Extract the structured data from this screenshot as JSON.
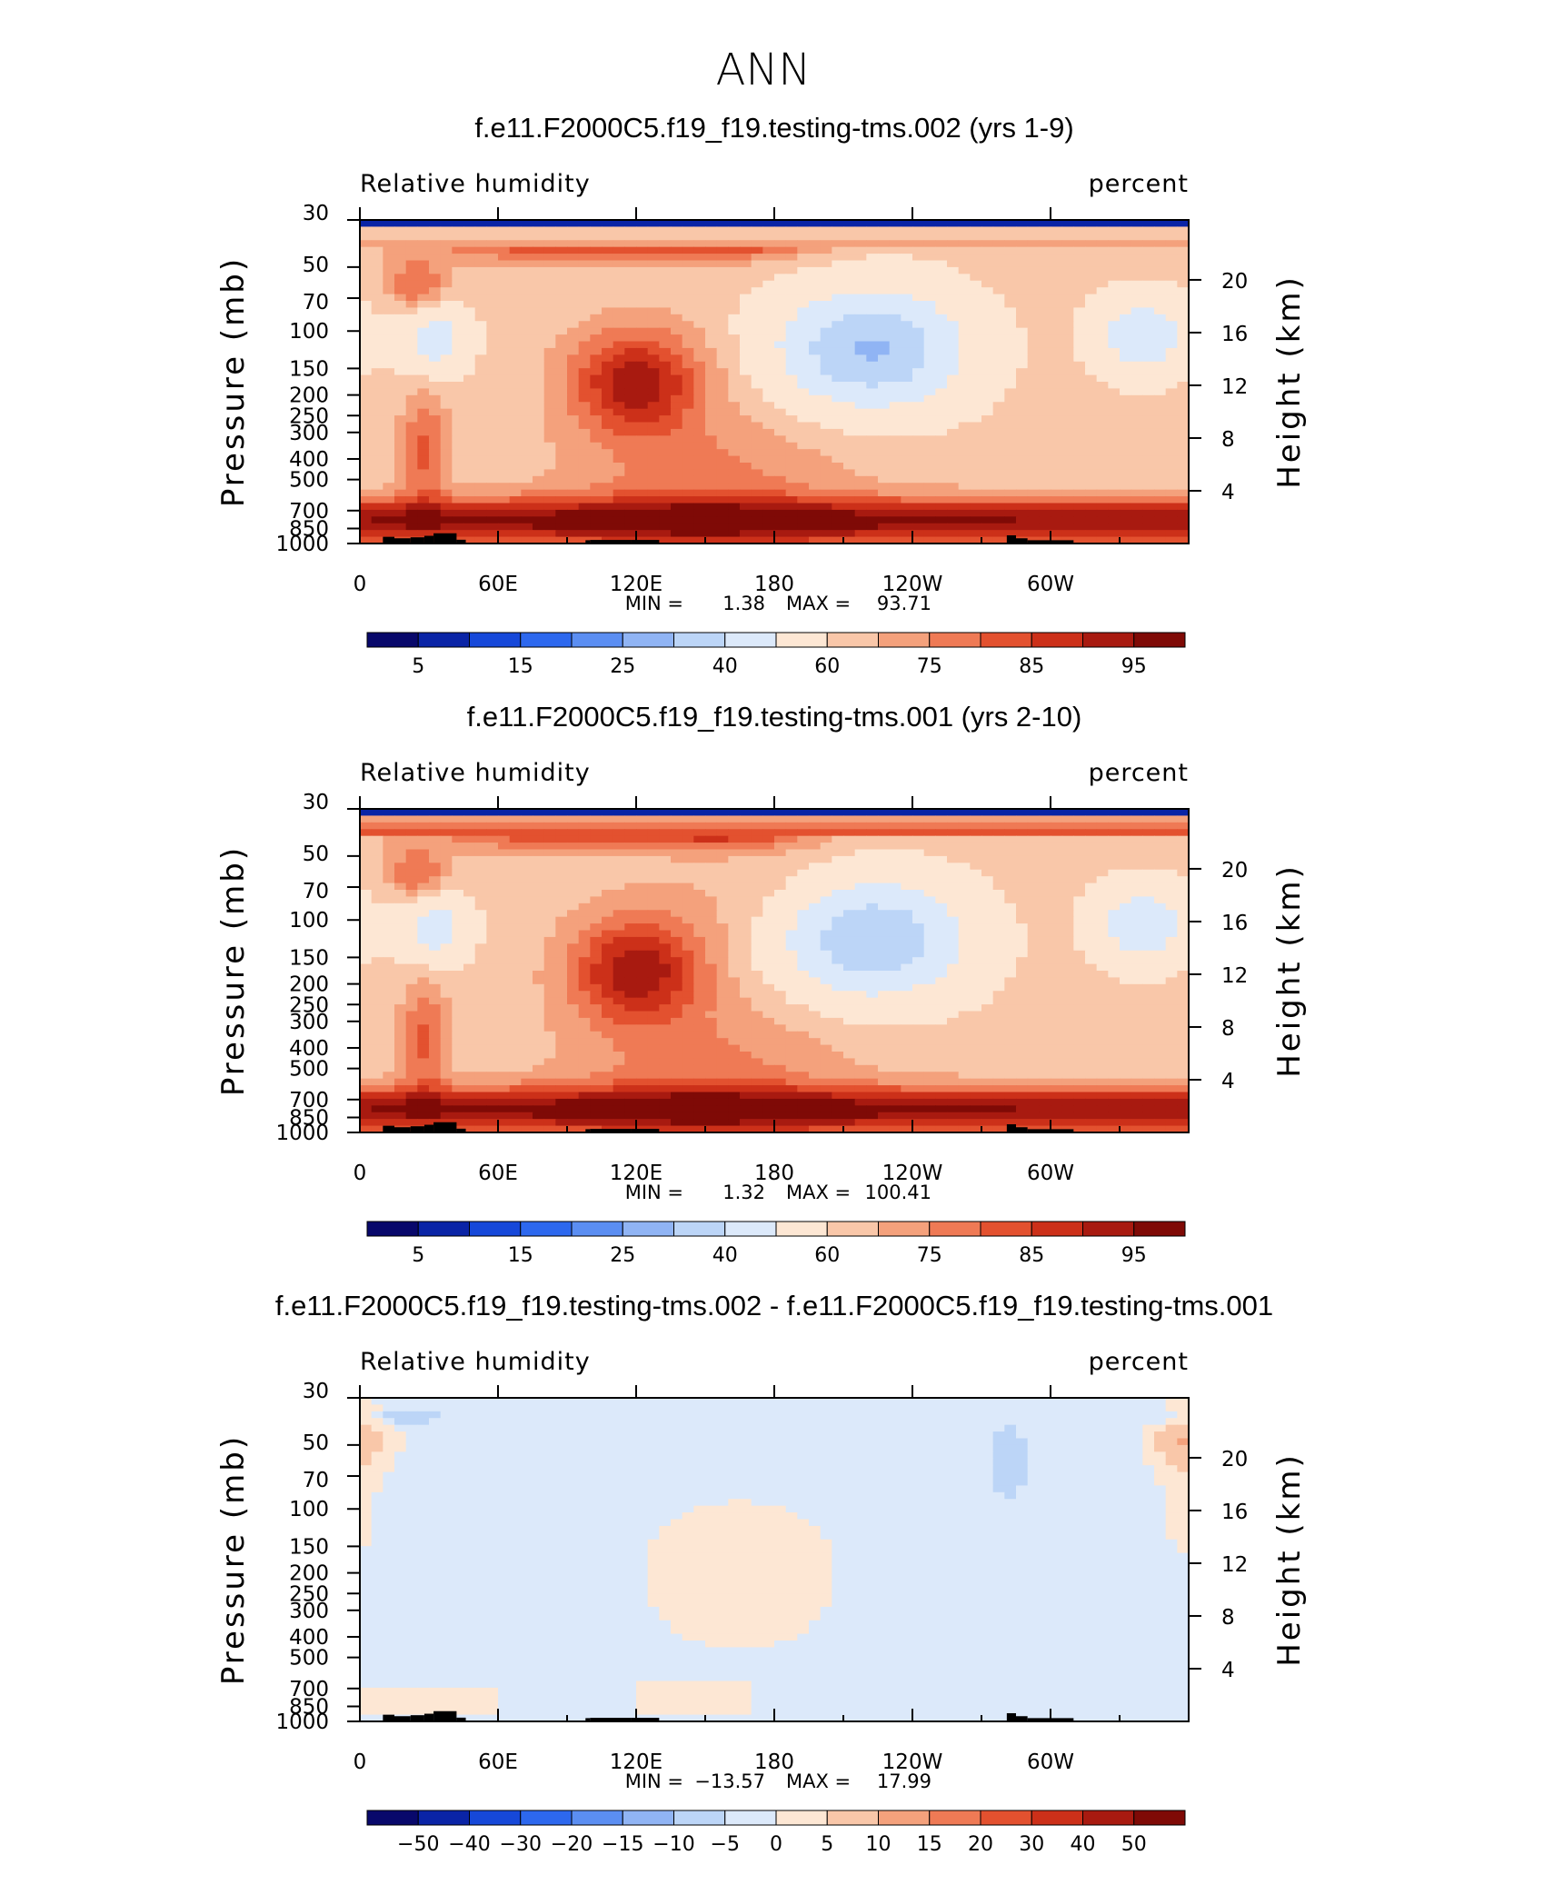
{
  "suptitle": "ANN",
  "palette_colors": [
    "#08086b",
    "#0a24a6",
    "#1648d9",
    "#2d68ee",
    "#5b8ef2",
    "#90b4f4",
    "#bcd5f7",
    "#dce9fa",
    "#fde7d4",
    "#f9c7a9",
    "#f4a17c",
    "#ef7a55",
    "#e3512f",
    "#cc3019",
    "#a81a10",
    "#7f0a06"
  ],
  "land_color": "#000000",
  "chart_data": [
    {
      "type": "heatmap",
      "title": "f.e11.F2000C5.f19_f19.testing-tms.002 (yrs 1-9)",
      "variable": "Relative humidity",
      "units": "percent",
      "ylabel_left": "Pressure (mb)",
      "ylabel_right": "Height (km)",
      "x_ticks": [
        "0",
        "60E",
        "120E",
        "180",
        "120W",
        "60W"
      ],
      "x_tick_lon": [
        0,
        60,
        120,
        180,
        240,
        300
      ],
      "xlim": [
        0,
        360
      ],
      "y_ticks": [
        "30",
        "50",
        "70",
        "100",
        "150",
        "200",
        "250",
        "300",
        "400",
        "500",
        "700",
        "850",
        "1000"
      ],
      "y_tick_p": [
        30,
        50,
        70,
        100,
        150,
        200,
        250,
        300,
        400,
        500,
        700,
        850,
        1000
      ],
      "ylim": [
        30,
        1000
      ],
      "height_ticks": [
        "20",
        "16",
        "12",
        "8",
        "4"
      ],
      "height_km": [
        20,
        16,
        12,
        8,
        4
      ],
      "min_label": "MIN =",
      "min_value": "1.38",
      "max_label": "MAX =",
      "max_value": "93.71",
      "colorbar_labels": [
        "5",
        "15",
        "25",
        "40",
        "60",
        "75",
        "85",
        "95"
      ],
      "levels": [
        0,
        5,
        10,
        15,
        20,
        25,
        30,
        40,
        50,
        60,
        65,
        70,
        75,
        80,
        85,
        90,
        95,
        100
      ],
      "field": "rh",
      "variant": 0
    },
    {
      "type": "heatmap",
      "title": "f.e11.F2000C5.f19_f19.testing-tms.001 (yrs 2-10)",
      "variable": "Relative humidity",
      "units": "percent",
      "ylabel_left": "Pressure (mb)",
      "ylabel_right": "Height (km)",
      "x_ticks": [
        "0",
        "60E",
        "120E",
        "180",
        "120W",
        "60W"
      ],
      "x_tick_lon": [
        0,
        60,
        120,
        180,
        240,
        300
      ],
      "xlim": [
        0,
        360
      ],
      "y_ticks": [
        "30",
        "50",
        "70",
        "100",
        "150",
        "200",
        "250",
        "300",
        "400",
        "500",
        "700",
        "850",
        "1000"
      ],
      "y_tick_p": [
        30,
        50,
        70,
        100,
        150,
        200,
        250,
        300,
        400,
        500,
        700,
        850,
        1000
      ],
      "ylim": [
        30,
        1000
      ],
      "height_ticks": [
        "20",
        "16",
        "12",
        "8",
        "4"
      ],
      "height_km": [
        20,
        16,
        12,
        8,
        4
      ],
      "min_label": "MIN =",
      "min_value": "1.32",
      "max_label": "MAX =",
      "max_value": "100.41",
      "colorbar_labels": [
        "5",
        "15",
        "25",
        "40",
        "60",
        "75",
        "85",
        "95"
      ],
      "levels": [
        0,
        5,
        10,
        15,
        20,
        25,
        30,
        40,
        50,
        60,
        65,
        70,
        75,
        80,
        85,
        90,
        95,
        100
      ],
      "field": "rh",
      "variant": 1
    },
    {
      "type": "heatmap",
      "title": "f.e11.F2000C5.f19_f19.testing-tms.002 - f.e11.F2000C5.f19_f19.testing-tms.001",
      "variable": "Relative humidity",
      "units": "percent",
      "ylabel_left": "Pressure (mb)",
      "ylabel_right": "Height (km)",
      "x_ticks": [
        "0",
        "60E",
        "120E",
        "180",
        "120W",
        "60W"
      ],
      "x_tick_lon": [
        0,
        60,
        120,
        180,
        240,
        300
      ],
      "xlim": [
        0,
        360
      ],
      "y_ticks": [
        "30",
        "50",
        "70",
        "100",
        "150",
        "200",
        "250",
        "300",
        "400",
        "500",
        "700",
        "850",
        "1000"
      ],
      "y_tick_p": [
        30,
        50,
        70,
        100,
        150,
        200,
        250,
        300,
        400,
        500,
        700,
        850,
        1000
      ],
      "ylim": [
        30,
        1000
      ],
      "height_ticks": [
        "20",
        "16",
        "12",
        "8",
        "4"
      ],
      "height_km": [
        20,
        16,
        12,
        8,
        4
      ],
      "min_label": "MIN =",
      "min_value": "−13.57",
      "max_label": "MAX =",
      "max_value": "17.99",
      "colorbar_labels": [
        "−50",
        "−40",
        "−30",
        "−20",
        "−15",
        "−10",
        "−5",
        "0",
        "5",
        "10",
        "15",
        "20",
        "30",
        "40",
        "50"
      ],
      "levels": [
        -60,
        -50,
        -40,
        -30,
        -20,
        -15,
        -10,
        -5,
        0,
        5,
        10,
        15,
        20,
        30,
        40,
        50,
        60
      ],
      "field": "diff",
      "variant": 0
    }
  ]
}
